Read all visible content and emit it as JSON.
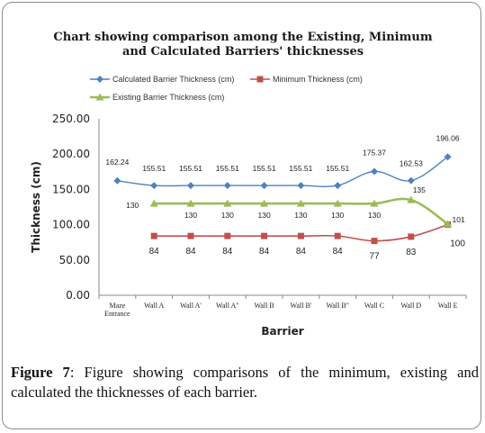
{
  "chart_data": {
    "type": "line",
    "title": "Chart showing comparison among the Existing, Minimum and Calculated Barriers' thicknesses",
    "title_line1": "Chart showing comparison among the Existing, Minimum",
    "title_line2": "and Calculated Barriers' thicknesses",
    "xlabel": "Barrier",
    "ylabel": "Thickness (cm)",
    "ylim": [
      0,
      250
    ],
    "yticks": [
      "0.00",
      "50.00",
      "100.00",
      "150.00",
      "200.00",
      "250.00"
    ],
    "categories": [
      "Maze Entrance",
      "Wall A",
      "Wall A'",
      "Wall A\"",
      "Wall B",
      "Wall B'",
      "Wall B\"",
      "Wall C",
      "Wall D",
      "Wall E"
    ],
    "category_lines": [
      [
        "Maze",
        "Entrance"
      ],
      [
        "Wall A"
      ],
      [
        "Wall A'"
      ],
      [
        "Wall A\""
      ],
      [
        "Wall B"
      ],
      [
        "Wall B'"
      ],
      [
        "Wall B\""
      ],
      [
        "Wall C"
      ],
      [
        "Wall D"
      ],
      [
        "Wall E"
      ]
    ],
    "legend_position": "top",
    "series": [
      {
        "name": "Calculated Barrier Thickness (cm)",
        "color": "#4f81bd",
        "marker": "diamond",
        "values": [
          162.24,
          155.51,
          155.51,
          155.51,
          155.51,
          155.51,
          155.51,
          175.37,
          162.53,
          196.06
        ],
        "labels": [
          "162.24",
          "155.51",
          "155.51",
          "155.51",
          "155.51",
          "155.51",
          "155.51",
          "175.37",
          "162.53",
          "196.06"
        ]
      },
      {
        "name": "Minimum Thickness (cm)",
        "color": "#c0504d",
        "marker": "square",
        "values": [
          null,
          84,
          84,
          84,
          84,
          84,
          84,
          77,
          83,
          100
        ],
        "labels": [
          null,
          "84",
          "84",
          "84",
          "84",
          "84",
          "84",
          "77",
          "83",
          "100"
        ]
      },
      {
        "name": "Existing Barrier Thickness (cm)",
        "color": "#9bbb59",
        "marker": "triangle",
        "values": [
          null,
          130,
          130,
          130,
          130,
          130,
          130,
          130,
          135,
          101
        ],
        "labels": [
          null,
          "130",
          "130",
          "130",
          "130",
          "130",
          "130",
          "130",
          "135",
          "101"
        ]
      }
    ],
    "grid": false
  },
  "caption": {
    "label": "Figure 7",
    "text": ": Figure showing comparisons of the minimum, existing and calculated the thicknesses of each barrier."
  }
}
